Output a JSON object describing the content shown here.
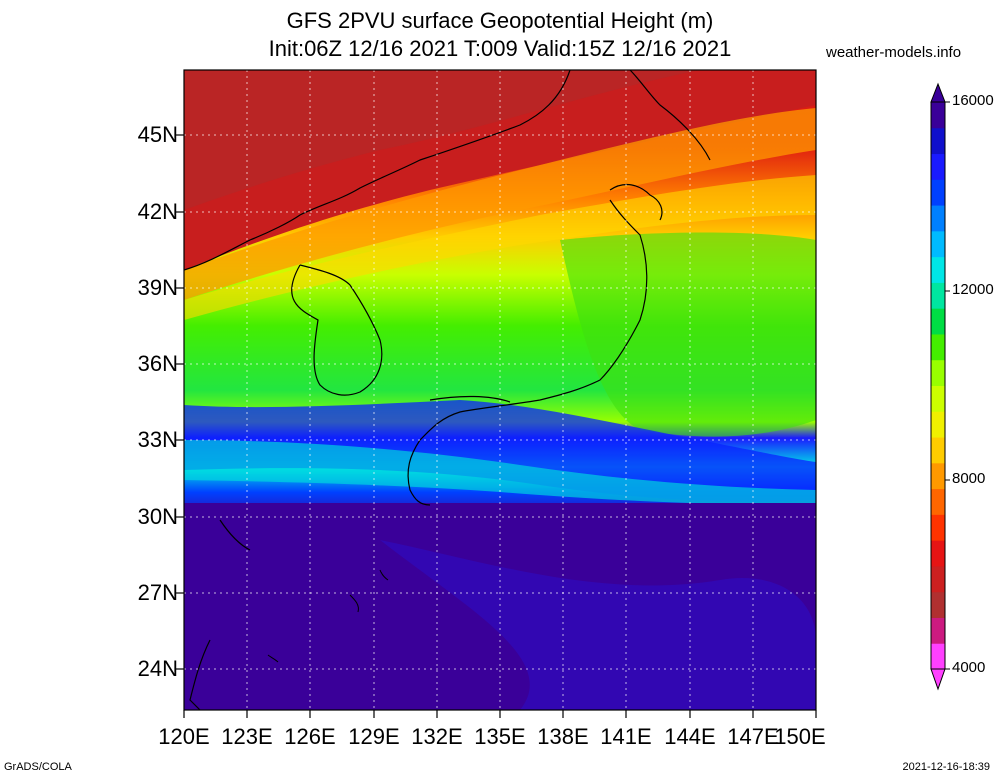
{
  "title_line1": "GFS 2PVU surface Geopotential Height (m)",
  "title_line2": "Init:06Z 12/16 2021 T:009 Valid:15Z 12/16 2021",
  "site": "weather-models.info",
  "lat_labels": [
    "45N",
    "42N",
    "39N",
    "36N",
    "33N",
    "30N",
    "27N",
    "24N"
  ],
  "lon_labels": [
    "120E",
    "123E",
    "126E",
    "129E",
    "132E",
    "135E",
    "138E",
    "141E",
    "144E",
    "147E",
    "150E"
  ],
  "colorbar": {
    "labels": [
      "16000",
      "12000",
      "8000",
      "4000"
    ],
    "colors": [
      "#ff40ff",
      "#cc1a80",
      "#b03030",
      "#cc2020",
      "#e61414",
      "#ff3300",
      "#ff6600",
      "#ff9900",
      "#ffcc00",
      "#f0f000",
      "#ccff00",
      "#99ff00",
      "#44ee00",
      "#00dd44",
      "#00e6a0",
      "#00e6e6",
      "#00bbff",
      "#0080ff",
      "#0040ff",
      "#1a1aff",
      "#1010cc",
      "#3a0099"
    ]
  },
  "footer_left": "GrADS/COLA",
  "footer_right": "2021-12-16-18:39"
}
